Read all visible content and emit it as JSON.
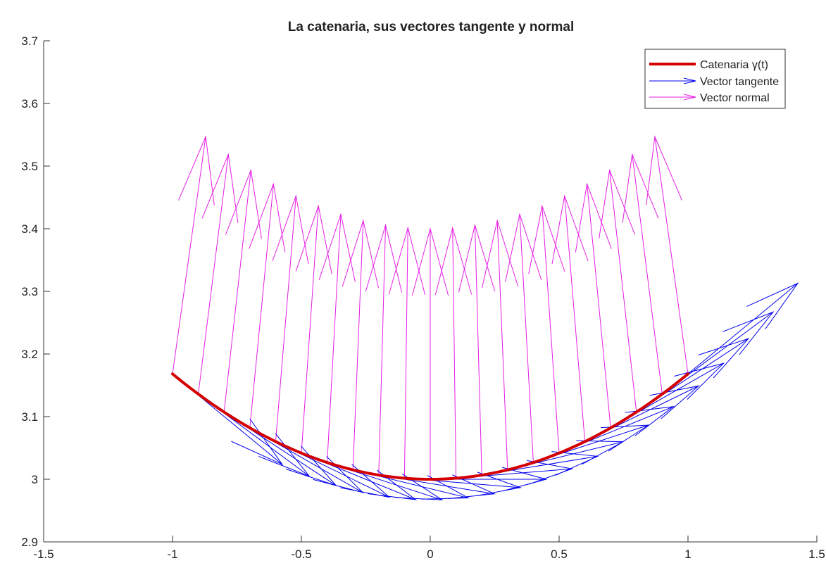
{
  "chart_data": {
    "type": "line",
    "title": "La catenaria, sus vectores tangente y normal",
    "xlabel": "",
    "ylabel": "",
    "xlim": [
      -1.5,
      1.5
    ],
    "ylim": [
      2.9,
      3.7
    ],
    "xticks": [
      "-1.5",
      "-1",
      "-0.5",
      "0",
      "0.5",
      "1",
      "1.5"
    ],
    "yticks": [
      "2.9",
      "3",
      "3.1",
      "3.2",
      "3.3",
      "3.4",
      "3.5",
      "3.6",
      "3.7"
    ],
    "grid": false,
    "legend_position": "top-right",
    "curve": {
      "name": "Catenaria  γ(t)",
      "color": "#d40000",
      "function": "3*cosh(x/3)",
      "t_range": [
        -1,
        1
      ]
    },
    "tangent_vectors": {
      "name": "Vector tangente",
      "color": "#0000ee",
      "t_values": [
        -1,
        -0.9,
        -0.8,
        -0.7,
        -0.6,
        -0.5,
        -0.4,
        -0.3,
        -0.2,
        -0.1,
        0,
        0.1,
        0.2,
        0.3,
        0.4,
        0.5,
        0.6,
        0.7,
        0.8,
        0.9,
        1
      ],
      "length": 0.45
    },
    "normal_vectors": {
      "name": "Vector normal",
      "color": "#e61ee6",
      "t_values": [
        -1,
        -0.9,
        -0.8,
        -0.7,
        -0.6,
        -0.5,
        -0.4,
        -0.3,
        -0.2,
        -0.1,
        0,
        0.1,
        0.2,
        0.3,
        0.4,
        0.5,
        0.6,
        0.7,
        0.8,
        0.9,
        1
      ],
      "length": 0.4
    }
  }
}
